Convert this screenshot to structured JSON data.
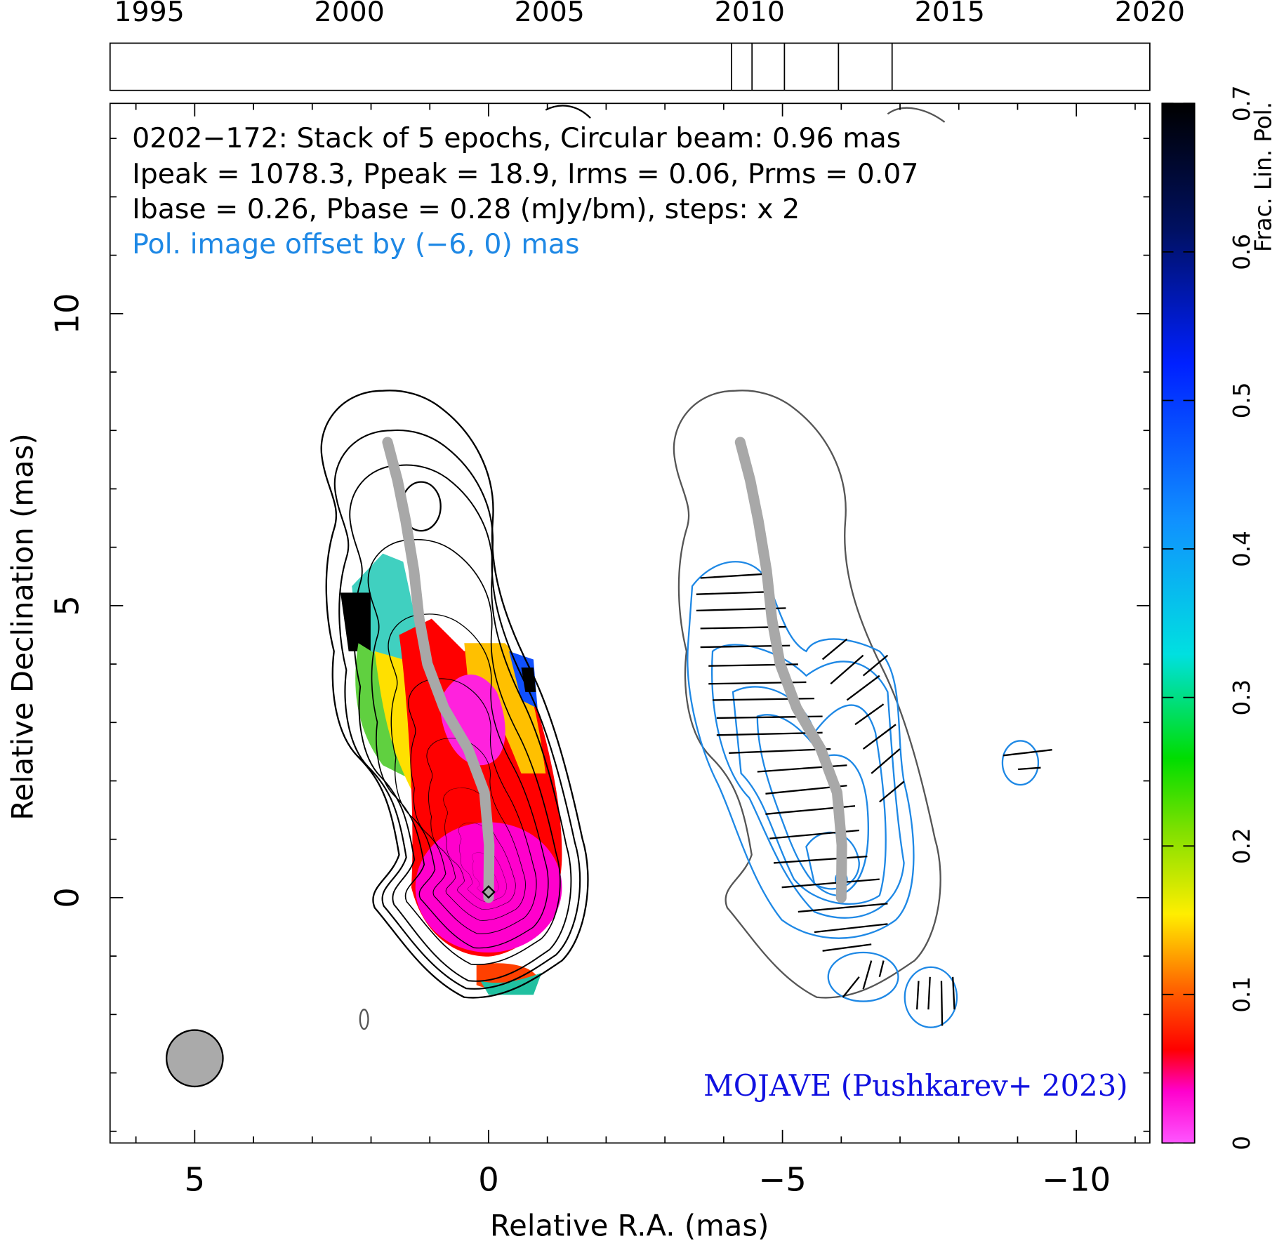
{
  "chart_data": {
    "type": "vlbi-map",
    "source_lines": [
      "0202−172: Stack of 5 epochs, Circular beam: 0.96 mas",
      "Ipeak = 1078.3, Ppeak = 18.9, Irms = 0.06, Prms = 0.07",
      "Ibase = 0.26, Pbase = 0.28 (mJy/bm), steps: x 2"
    ],
    "offset_note": "Pol. image offset by (−6, 0) mas",
    "credit": "MOJAVE (Pushkarev+ 2023)",
    "x_label": "Relative R.A. (mas)",
    "y_label": "Relative Declination (mas)",
    "xlim": [
      6.44,
      -11.25
    ],
    "ylim": [
      -4.2,
      13.6
    ],
    "xticks": [
      5,
      0,
      {
        "value": -5,
        "label": "−5"
      },
      {
        "value": -10,
        "label": "−10"
      }
    ],
    "yticks": [
      0,
      5,
      10
    ],
    "xminorticks": [
      6,
      4,
      3,
      2,
      1,
      -1,
      -2,
      -3,
      -4,
      -6,
      -7,
      -8,
      -9,
      -11
    ],
    "yminorticks": [
      -4,
      -3,
      -2,
      -1,
      1,
      2,
      3,
      4,
      6,
      7,
      8,
      9,
      11,
      12,
      13
    ],
    "beam": {
      "x": 5,
      "y": -2.75,
      "diameter": 0.96
    },
    "pol_offset": [
      -6,
      0
    ],
    "ridge": {
      "color": "#a8a8a8",
      "x": [
        0,
        -0.01,
        0.07,
        0.35,
        0.76,
        1.04,
        1.18,
        1.27,
        1.41,
        1.55,
        1.72
      ],
      "y": [
        0,
        0.9,
        1.8,
        2.55,
        3.25,
        4.0,
        4.77,
        5.6,
        6.45,
        7.15,
        7.8
      ]
    },
    "timeline": {
      "xlim": [
        1994.02,
        2020
      ],
      "xticks": [
        1995,
        2000,
        2005,
        2010,
        2015,
        2020
      ],
      "epochs": [
        2009.55,
        2010.06,
        2010.87,
        2012.22,
        2013.56
      ]
    },
    "colorbar": {
      "label": "Frac. Lin. Pol.",
      "lim": [
        0,
        0.7
      ],
      "ticks": [
        0,
        0.1,
        0.2,
        0.3,
        0.4,
        0.5,
        0.6,
        0.7
      ]
    }
  }
}
